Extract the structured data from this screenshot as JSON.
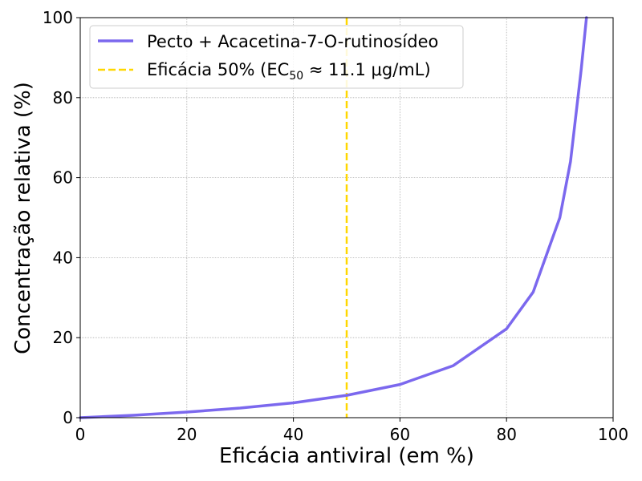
{
  "chart_data": {
    "type": "line",
    "xlabel": "Eficácia antiviral (em %)",
    "ylabel": "Concentração relativa (%)",
    "xlim": [
      0,
      100
    ],
    "ylim": [
      0,
      100
    ],
    "xticks": [
      0,
      20,
      40,
      60,
      80,
      100
    ],
    "yticks": [
      0,
      20,
      40,
      60,
      80,
      100
    ],
    "grid": true,
    "legend_position": "top-left",
    "series": [
      {
        "name": "Pecto + Acacetina-7-O-rutinosídeo",
        "color": "#7B68EE",
        "x": [
          0,
          10,
          20,
          30,
          40,
          50,
          60,
          70,
          80,
          85,
          90,
          92,
          94,
          95
        ],
        "y": [
          0,
          0.6,
          1.4,
          2.4,
          3.7,
          5.6,
          8.3,
          13.0,
          22.2,
          31.4,
          50.0,
          64.0,
          87.0,
          100.0
        ]
      }
    ],
    "reference_line": {
      "label_prefix": "Eficácia 50% (EC",
      "label_subscript": "50",
      "label_suffix": " ≈ 11.1 μg/mL)",
      "x": 50,
      "color": "#FFD700",
      "style": "dashed"
    }
  }
}
